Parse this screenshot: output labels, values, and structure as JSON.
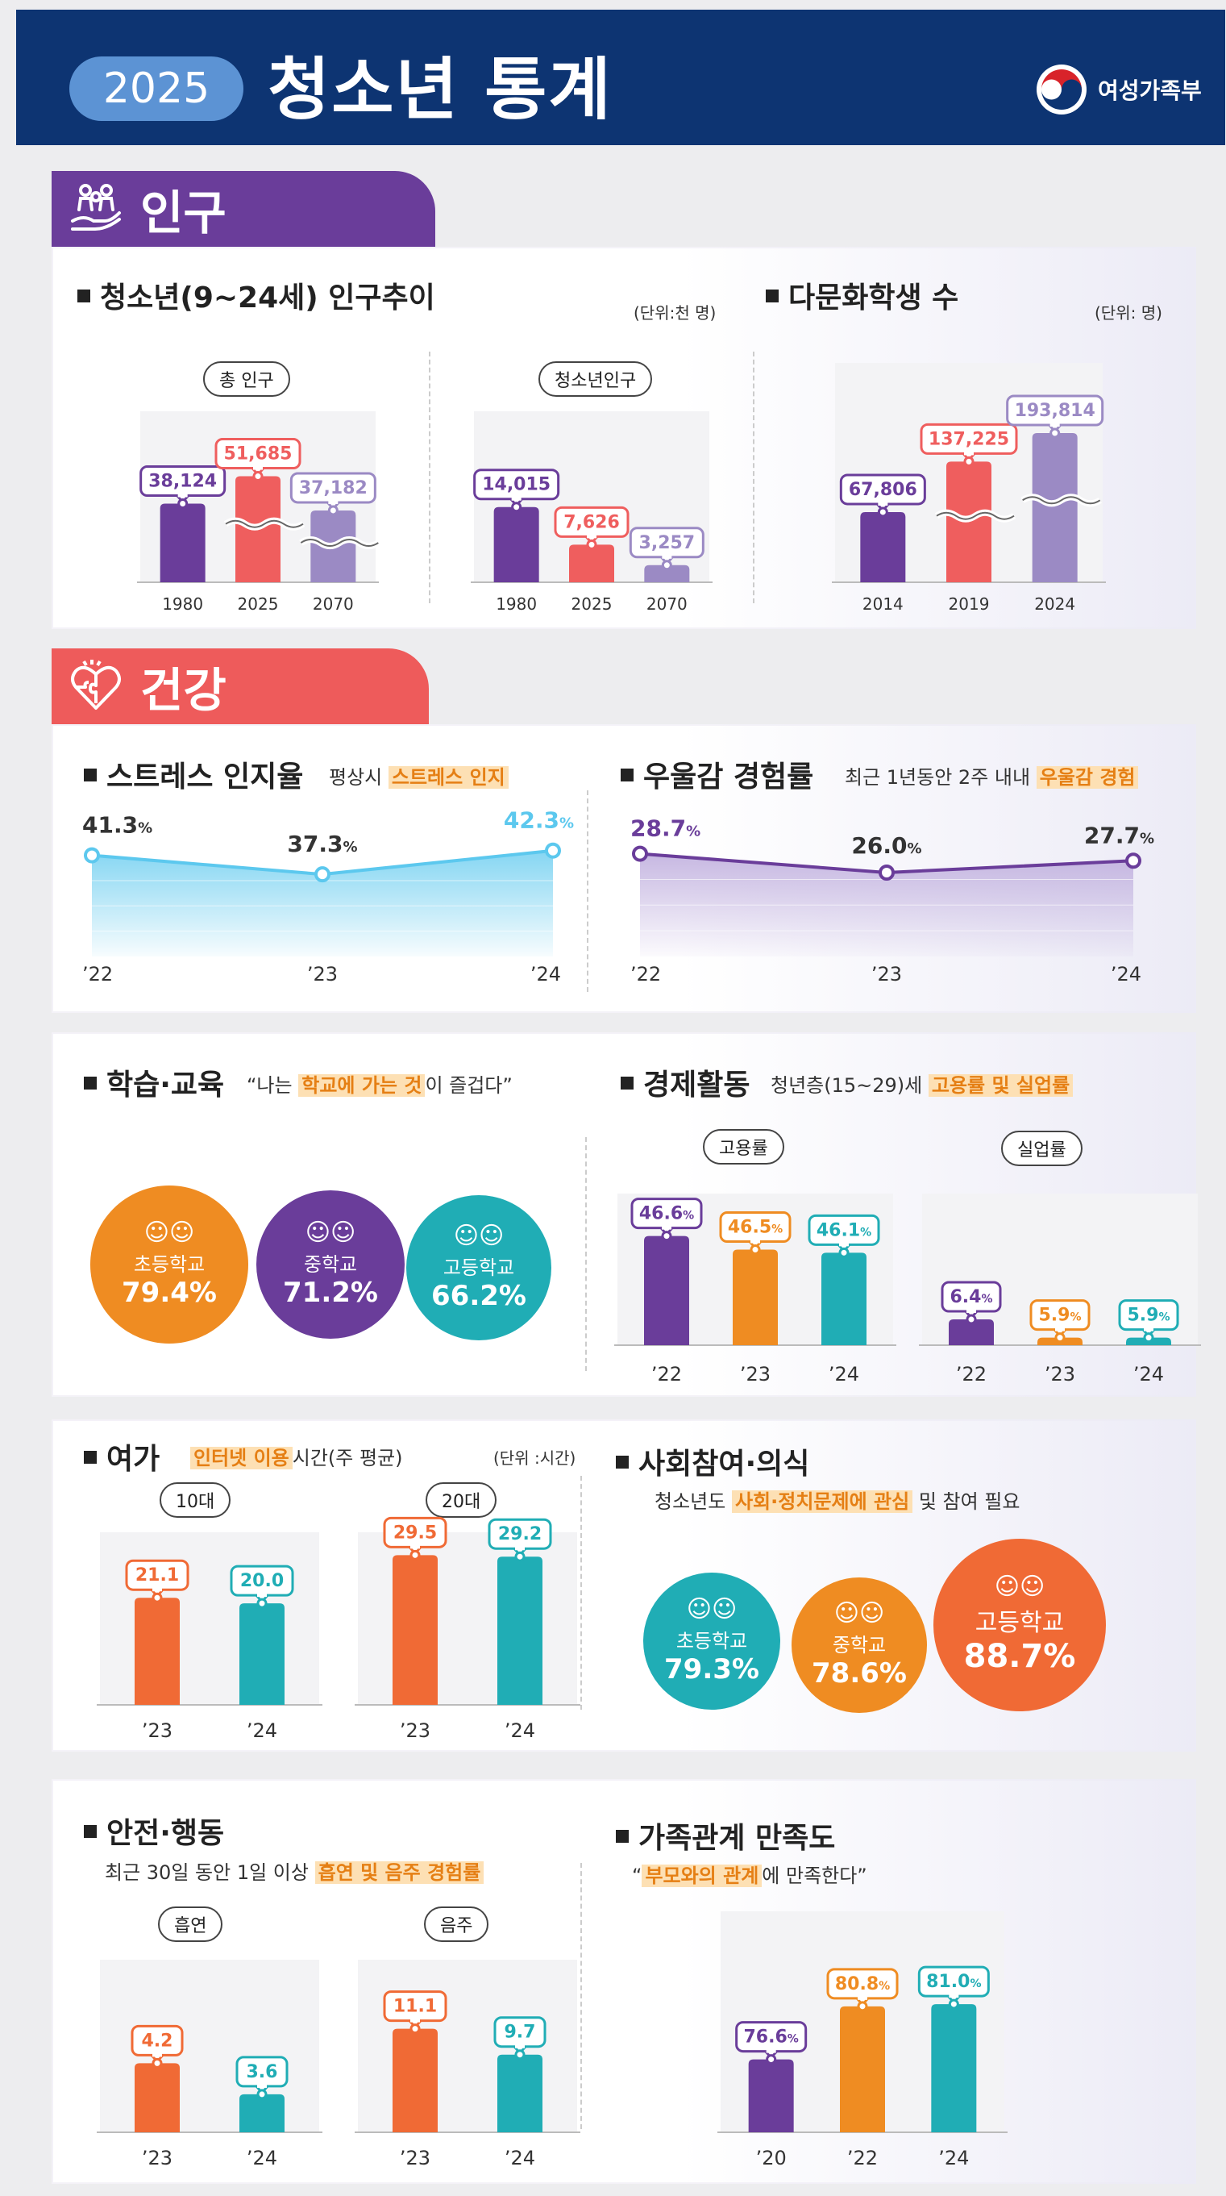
{
  "header": {
    "year": "2025",
    "title": "청소년 통계",
    "ministry": "여성가족부"
  },
  "sections": {
    "population": "인구",
    "health": "건강"
  },
  "population": {
    "title": "청소년(9~24세) 인구추이",
    "unit": "(단위:천 명)",
    "total_label": "총 인구",
    "youth_label": "청소년인구",
    "multicultural": {
      "title": "다문화학생 수",
      "unit": "(단위: 명)"
    }
  },
  "stress": {
    "title": "스트레스 인지율",
    "desc_pre": "평상시",
    "desc_hl": "스트레스 인지"
  },
  "depression": {
    "title": "우울감 경험률",
    "desc_pre": "최근 1년동안 2주 내내",
    "desc_hl": "우울감 경험"
  },
  "study": {
    "title": "학습·교육",
    "quote_pre": "“나는",
    "quote_hl": "학교에 가는 것",
    "quote_post": "이 즐겁다”",
    "items": [
      {
        "label": "초등학교",
        "value": "79.4%"
      },
      {
        "label": "중학교",
        "value": "71.2%"
      },
      {
        "label": "고등학교",
        "value": "66.2%"
      }
    ]
  },
  "economy": {
    "title": "경제활동",
    "desc_pre": "청년층(15~29)세",
    "desc_hl": "고용률 및 실업률",
    "emp_label": "고용률",
    "unemp_label": "실업률"
  },
  "leisure": {
    "title": "여가",
    "desc_hl": "인터넷 이용",
    "desc_post": "시간(주 평균)",
    "unit": "(단위 :시간)",
    "teen_label": "10대",
    "twenty_label": "20대"
  },
  "social": {
    "title": "사회참여·의식",
    "desc_pre": "청소년도",
    "desc_hl": "사회·정치문제에 관심",
    "desc_post": "및 참여 필요",
    "items": [
      {
        "label": "초등학교",
        "value": "79.3%"
      },
      {
        "label": "중학교",
        "value": "78.6%"
      },
      {
        "label": "고등학교",
        "value": "88.7%"
      }
    ]
  },
  "safety": {
    "title": "안전·행동",
    "desc_pre": "최근 30일 동안 1일 이상",
    "desc_hl": "흡연 및 음주 경험률",
    "smoke_label": "흡연",
    "drink_label": "음주"
  },
  "family": {
    "title": "가족관계 만족도",
    "quote_pre": "“",
    "quote_hl": "부모와의 관계",
    "quote_post": "에 만족한다”"
  },
  "colors": {
    "purple": "#6a3d9a",
    "red": "#ef5e5e",
    "lavender": "#9b8ac4",
    "navy": "#0d3472",
    "orange": "#ef8c22",
    "teal": "#20adb5",
    "deeporange": "#f06a35",
    "sky": "#5cc8ee"
  },
  "chart_data": [
    {
      "type": "bar",
      "title": "총 인구",
      "categories": [
        "1980",
        "2025",
        "2070"
      ],
      "values": [
        38124,
        51685,
        37182
      ],
      "labels": [
        "38,124",
        "51,685",
        "37,182"
      ],
      "unit": "천 명",
      "axis_break": true
    },
    {
      "type": "bar",
      "title": "청소년인구",
      "categories": [
        "1980",
        "2025",
        "2070"
      ],
      "values": [
        14015,
        7626,
        3257
      ],
      "labels": [
        "14,015",
        "7,626",
        "3,257"
      ],
      "unit": "천 명"
    },
    {
      "type": "bar",
      "title": "다문화학생 수",
      "categories": [
        "2014",
        "2019",
        "2024"
      ],
      "values": [
        67806,
        137225,
        193814
      ],
      "labels": [
        "67,806",
        "137,225",
        "193,814"
      ],
      "unit": "명",
      "axis_break": true
    },
    {
      "type": "area",
      "title": "스트레스 인지율",
      "categories": [
        "’22",
        "’23",
        "’24"
      ],
      "values": [
        41.3,
        37.3,
        42.3
      ],
      "labels": [
        "41.3",
        "37.3",
        "42.3"
      ],
      "unit": "%"
    },
    {
      "type": "area",
      "title": "우울감 경험률",
      "categories": [
        "’22",
        "’23",
        "’24"
      ],
      "values": [
        28.7,
        26.0,
        27.7
      ],
      "labels": [
        "28.7",
        "26.0",
        "27.7"
      ],
      "unit": "%"
    },
    {
      "type": "bar",
      "title": "고용률",
      "categories": [
        "’22",
        "’23",
        "’24"
      ],
      "values": [
        46.6,
        46.5,
        46.1
      ],
      "labels": [
        "46.6",
        "46.5",
        "46.1"
      ],
      "unit": "%"
    },
    {
      "type": "bar",
      "title": "실업률",
      "categories": [
        "’22",
        "’23",
        "’24"
      ],
      "values": [
        6.4,
        5.9,
        5.9
      ],
      "labels": [
        "6.4",
        "5.9",
        "5.9"
      ],
      "unit": "%"
    },
    {
      "type": "bar",
      "title": "10대 인터넷 이용시간",
      "categories": [
        "’23",
        "’24"
      ],
      "values": [
        21.1,
        20.0
      ],
      "labels": [
        "21.1",
        "20.0"
      ],
      "unit": "시간"
    },
    {
      "type": "bar",
      "title": "20대 인터넷 이용시간",
      "categories": [
        "’23",
        "’24"
      ],
      "values": [
        29.5,
        29.2
      ],
      "labels": [
        "29.5",
        "29.2"
      ],
      "unit": "시간"
    },
    {
      "type": "bar",
      "title": "흡연",
      "categories": [
        "’23",
        "’24"
      ],
      "values": [
        4.2,
        3.6
      ],
      "labels": [
        "4.2",
        "3.6"
      ],
      "unit": "%"
    },
    {
      "type": "bar",
      "title": "음주",
      "categories": [
        "’23",
        "’24"
      ],
      "values": [
        11.1,
        9.7
      ],
      "labels": [
        "11.1",
        "9.7"
      ],
      "unit": "%"
    },
    {
      "type": "bar",
      "title": "가족관계 만족도",
      "categories": [
        "’20",
        "’22",
        "’24"
      ],
      "values": [
        76.6,
        80.8,
        81.0
      ],
      "labels": [
        "76.6",
        "80.8",
        "81.0"
      ],
      "unit": "%"
    }
  ]
}
